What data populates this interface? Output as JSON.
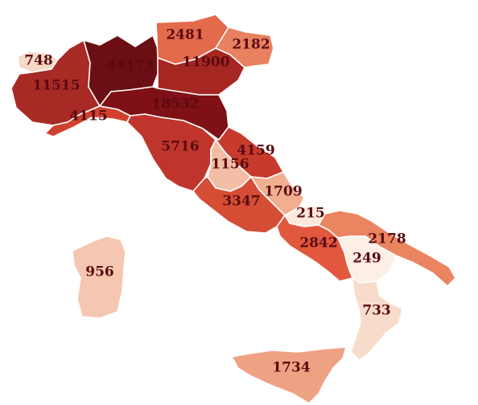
{
  "chart_data": {
    "type": "map",
    "regions": [
      {
        "id": "valle-daosta",
        "value": "748",
        "color": "#f7d9c8"
      },
      {
        "id": "piemonte",
        "value": "11515",
        "color": "#a82a25"
      },
      {
        "id": "lombardia",
        "value": "44173",
        "color": "#6c0f14"
      },
      {
        "id": "trentino-alto-adige",
        "value": "2481",
        "color": "#e46a4c"
      },
      {
        "id": "veneto",
        "value": "11900",
        "color": "#a62622"
      },
      {
        "id": "friuli-venezia-giulia",
        "value": "2182",
        "color": "#e9805f"
      },
      {
        "id": "liguria",
        "value": "4115",
        "color": "#d0412e"
      },
      {
        "id": "emilia-romagna",
        "value": "18532",
        "color": "#7e1016"
      },
      {
        "id": "toscana",
        "value": "5716",
        "color": "#c0352b"
      },
      {
        "id": "marche",
        "value": "4159",
        "color": "#c73a2c"
      },
      {
        "id": "umbria",
        "value": "1156",
        "color": "#f4bda5"
      },
      {
        "id": "lazio",
        "value": "3347",
        "color": "#d44d34"
      },
      {
        "id": "abruzzo",
        "value": "1709",
        "color": "#f2ae91"
      },
      {
        "id": "molise",
        "value": "215",
        "color": "#fde8dd"
      },
      {
        "id": "campania",
        "value": "2842",
        "color": "#e2583e"
      },
      {
        "id": "puglia",
        "value": "2178",
        "color": "#ea8461"
      },
      {
        "id": "basilicata",
        "value": "249",
        "color": "#fdeee6"
      },
      {
        "id": "calabria",
        "value": "733",
        "color": "#f8dccb"
      },
      {
        "id": "sicilia",
        "value": "1734",
        "color": "#efa283"
      },
      {
        "id": "sardegna",
        "value": "956",
        "color": "#f5c6b0"
      }
    ]
  }
}
